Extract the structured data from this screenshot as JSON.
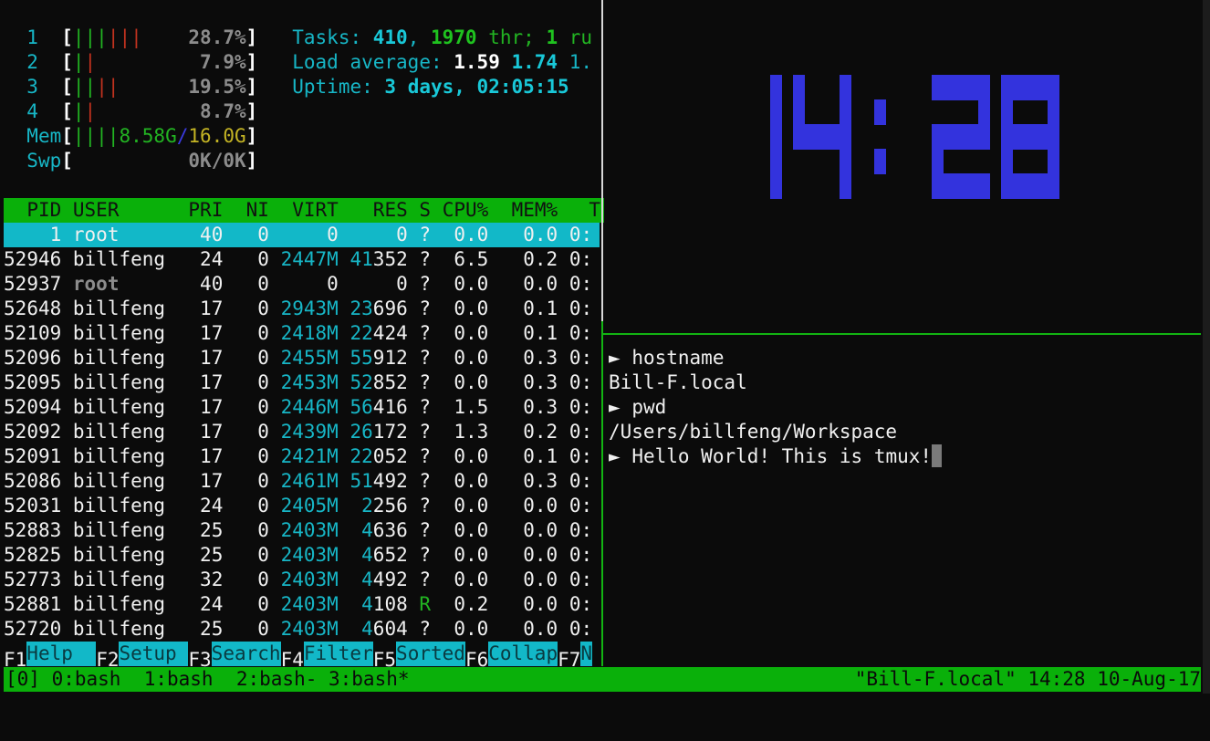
{
  "htop": {
    "cpus": [
      {
        "num": "1",
        "bar_normal": "|||",
        "bar_kernel": "|||",
        "percent": "28.7%"
      },
      {
        "num": "2",
        "bar_normal": "|",
        "bar_kernel": "|",
        "percent": "7.9%"
      },
      {
        "num": "3",
        "bar_normal": "||",
        "bar_kernel": "||",
        "percent": "19.5%"
      },
      {
        "num": "4",
        "bar_normal": "|",
        "bar_kernel": "|",
        "percent": "8.7%"
      }
    ],
    "mem": {
      "label": "Mem",
      "bar": "||||",
      "used": "8.58G",
      "sep": "/",
      "total": "16.0G"
    },
    "swp": {
      "label": "Swp",
      "value": "0K/0K"
    },
    "tasks": {
      "label": "Tasks: ",
      "count": "410",
      "sep1": ", ",
      "threads": "1970",
      "thr_label": " thr; ",
      "running": "1",
      "run_label": " ru"
    },
    "load": {
      "label": "Load average: ",
      "l1": "1.59",
      "l5": "1.74",
      "l15": "1."
    },
    "uptime": {
      "label": "Uptime: ",
      "value": "3 days, 02:05:15"
    },
    "columns": {
      "pid": "PID",
      "user": "USER",
      "pri": "PRI",
      "ni": "NI",
      "virt": "VIRT",
      "res": "RES",
      "s": "S",
      "cpu": "CPU%",
      "mem": "MEM%",
      "time": "T"
    },
    "processes": [
      {
        "pid": "1",
        "user": "root",
        "pri": "40",
        "ni": "0",
        "virt": "0",
        "res": "0",
        "s": "?",
        "cpu": "0.0",
        "mem": "0.0",
        "time": "0:",
        "selected": true
      },
      {
        "pid": "52946",
        "user": "billfeng",
        "pri": "24",
        "ni": "0",
        "virt": "2447M",
        "res": "41352",
        "s": "?",
        "cpu": "6.5",
        "mem": "0.2",
        "time": "0:"
      },
      {
        "pid": "52937",
        "user": "root",
        "pri": "40",
        "ni": "0",
        "virt": "0",
        "res": "0",
        "s": "?",
        "cpu": "0.0",
        "mem": "0.0",
        "time": "0:"
      },
      {
        "pid": "52648",
        "user": "billfeng",
        "pri": "17",
        "ni": "0",
        "virt": "2943M",
        "res": "23696",
        "s": "?",
        "cpu": "0.0",
        "mem": "0.1",
        "time": "0:"
      },
      {
        "pid": "52109",
        "user": "billfeng",
        "pri": "17",
        "ni": "0",
        "virt": "2418M",
        "res": "22424",
        "s": "?",
        "cpu": "0.0",
        "mem": "0.1",
        "time": "0:"
      },
      {
        "pid": "52096",
        "user": "billfeng",
        "pri": "17",
        "ni": "0",
        "virt": "2455M",
        "res": "55912",
        "s": "?",
        "cpu": "0.0",
        "mem": "0.3",
        "time": "0:"
      },
      {
        "pid": "52095",
        "user": "billfeng",
        "pri": "17",
        "ni": "0",
        "virt": "2453M",
        "res": "52852",
        "s": "?",
        "cpu": "0.0",
        "mem": "0.3",
        "time": "0:"
      },
      {
        "pid": "52094",
        "user": "billfeng",
        "pri": "17",
        "ni": "0",
        "virt": "2446M",
        "res": "56416",
        "s": "?",
        "cpu": "1.5",
        "mem": "0.3",
        "time": "0:"
      },
      {
        "pid": "52092",
        "user": "billfeng",
        "pri": "17",
        "ni": "0",
        "virt": "2439M",
        "res": "26172",
        "s": "?",
        "cpu": "1.3",
        "mem": "0.2",
        "time": "0:"
      },
      {
        "pid": "52091",
        "user": "billfeng",
        "pri": "17",
        "ni": "0",
        "virt": "2421M",
        "res": "22052",
        "s": "?",
        "cpu": "0.0",
        "mem": "0.1",
        "time": "0:"
      },
      {
        "pid": "52086",
        "user": "billfeng",
        "pri": "17",
        "ni": "0",
        "virt": "2461M",
        "res": "51492",
        "s": "?",
        "cpu": "0.0",
        "mem": "0.3",
        "time": "0:"
      },
      {
        "pid": "52031",
        "user": "billfeng",
        "pri": "24",
        "ni": "0",
        "virt": "2405M",
        "res": "2256",
        "s": "?",
        "cpu": "0.0",
        "mem": "0.0",
        "time": "0:"
      },
      {
        "pid": "52883",
        "user": "billfeng",
        "pri": "25",
        "ni": "0",
        "virt": "2403M",
        "res": "4636",
        "s": "?",
        "cpu": "0.0",
        "mem": "0.0",
        "time": "0:"
      },
      {
        "pid": "52825",
        "user": "billfeng",
        "pri": "25",
        "ni": "0",
        "virt": "2403M",
        "res": "4652",
        "s": "?",
        "cpu": "0.0",
        "mem": "0.0",
        "time": "0:"
      },
      {
        "pid": "52773",
        "user": "billfeng",
        "pri": "32",
        "ni": "0",
        "virt": "2403M",
        "res": "4492",
        "s": "?",
        "cpu": "0.0",
        "mem": "0.0",
        "time": "0:"
      },
      {
        "pid": "52881",
        "user": "billfeng",
        "pri": "24",
        "ni": "0",
        "virt": "2403M",
        "res": "4108",
        "s": "R",
        "cpu": "0.2",
        "mem": "0.0",
        "time": "0:"
      },
      {
        "pid": "52720",
        "user": "billfeng",
        "pri": "25",
        "ni": "0",
        "virt": "2403M",
        "res": "4604",
        "s": "?",
        "cpu": "0.0",
        "mem": "0.0",
        "time": "0:"
      }
    ],
    "fkeys": [
      {
        "key": "F1",
        "label": "Help"
      },
      {
        "key": "F2",
        "label": "Setup"
      },
      {
        "key": "F3",
        "label": "Search"
      },
      {
        "key": "F4",
        "label": "Filter"
      },
      {
        "key": "F5",
        "label": "Sorted"
      },
      {
        "key": "F6",
        "label": "Collap"
      },
      {
        "key": "F7",
        "label": "N"
      }
    ]
  },
  "clock": {
    "time": "14:28",
    "color": "#3333dd"
  },
  "shell": {
    "lines": [
      {
        "prompt": "►",
        "text": "hostname"
      },
      {
        "text": "Bill-F.local"
      },
      {
        "prompt": "►",
        "text": "pwd"
      },
      {
        "text": "/Users/billfeng/Workspace"
      },
      {
        "prompt": "►",
        "text": "Hello World! This is tmux!",
        "cursor": true
      }
    ]
  },
  "tmux_status": {
    "left": "[0] 0:bash  1:bash  2:bash- 3:bash*",
    "right": "\"Bill-F.local\" 14:28 10-Aug-17",
    "color": "#0ab00a"
  }
}
